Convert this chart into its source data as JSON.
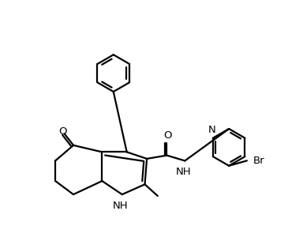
{
  "bg_color": "#ffffff",
  "line_color": "#000000",
  "line_width": 1.6,
  "font_size": 9.5,
  "xlim": [
    -0.5,
    10.5
  ],
  "ylim": [
    -0.8,
    8.5
  ]
}
